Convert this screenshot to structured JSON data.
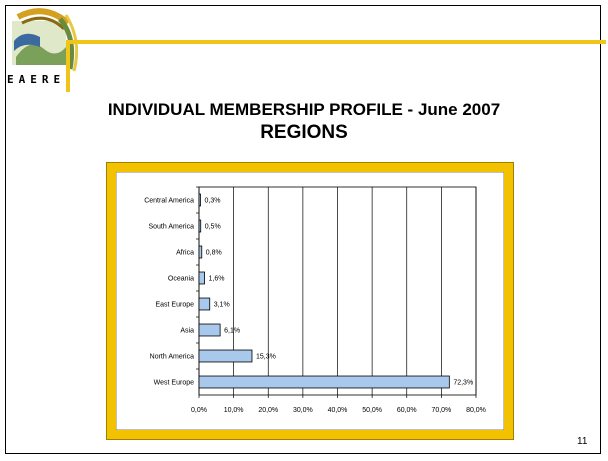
{
  "slide": {
    "title_line1": "INDIVIDUAL MEMBERSHIP PROFILE - June 2007",
    "title_line2": "REGIONS",
    "page_number": "11",
    "logo_text": "EAERE",
    "accent_color": "#f0c419"
  },
  "chart_data": {
    "type": "bar",
    "orientation": "horizontal",
    "categories": [
      "Central America",
      "South America",
      "Africa",
      "Oceania",
      "East Europe",
      "Asia",
      "North America",
      "West Europe"
    ],
    "values": [
      0.3,
      0.5,
      0.8,
      1.6,
      3.1,
      6.1,
      15.3,
      72.3
    ],
    "data_labels": [
      "0,3%",
      "0,5%",
      "0,8%",
      "1,6%",
      "3,1%",
      "6,1%",
      "15,3%",
      "72,3%"
    ],
    "xlim": [
      0,
      80
    ],
    "x_ticks": [
      "0,0%",
      "10,0%",
      "20,0%",
      "30,0%",
      "40,0%",
      "50,0%",
      "60,0%",
      "70,0%",
      "80,0%"
    ],
    "bar_color": "#a8c8ec",
    "frame_color": "#f2c200",
    "grid": true
  }
}
